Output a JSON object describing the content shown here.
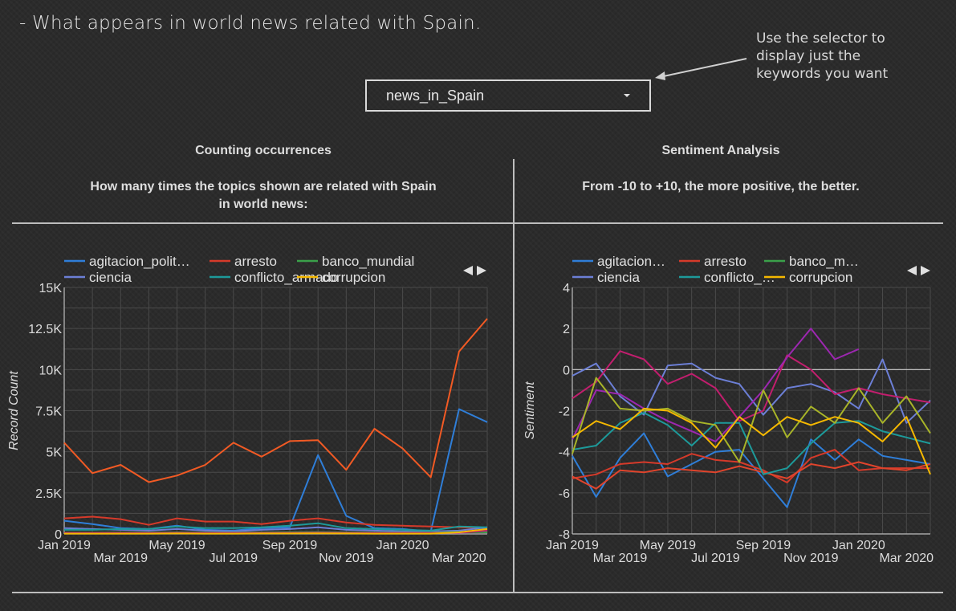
{
  "header": {
    "headline": "- What appears in world news related with Spain.",
    "note": "Use the selector to display just the keywords you want"
  },
  "selector": {
    "value": "news_in_Spain"
  },
  "left_section": {
    "title": "Counting occurrences",
    "subtitle_line1": "How many times the topics shown are related with Spain",
    "subtitle_line2": "in world news:"
  },
  "right_section": {
    "title": "Sentiment Analysis",
    "subtitle": "From -10 to +10, the more positive, the better."
  },
  "colors": {
    "agitacion": "#2f7ed8",
    "arresto": "#d63a2a",
    "banco": "#3aa04a",
    "ciencia": "#6c7fd6",
    "conflicto": "#1d9a9a",
    "corrupcion": "#f5b800",
    "orange": "#f25a24",
    "magenta": "#c21e6e",
    "purple": "#9c27b0",
    "olive": "#a8b428"
  },
  "chart_data": [
    {
      "type": "line",
      "ylabel": "Record Count",
      "ylim": [
        0,
        15000
      ],
      "y_ticks": [
        {
          "v": 0,
          "label": "0"
        },
        {
          "v": 2500,
          "label": "2.5K"
        },
        {
          "v": 5000,
          "label": "5K"
        },
        {
          "v": 7500,
          "label": "7.5K"
        },
        {
          "v": 10000,
          "label": "10K"
        },
        {
          "v": 12500,
          "label": "12.5K"
        },
        {
          "v": 15000,
          "label": "15K"
        }
      ],
      "x_ticks": [
        {
          "i": 0,
          "label": "Jan 2019"
        },
        {
          "i": 2,
          "label": "Mar 2019"
        },
        {
          "i": 4,
          "label": "May 2019"
        },
        {
          "i": 6,
          "label": "Jul 2019"
        },
        {
          "i": 8,
          "label": "Sep 2019"
        },
        {
          "i": 10,
          "label": "Nov 2019"
        },
        {
          "i": 12,
          "label": "Jan 2020"
        },
        {
          "i": 14,
          "label": "Mar 2020"
        }
      ],
      "legend": [
        {
          "label": "agitacion_polit…",
          "color": "#2f7ed8"
        },
        {
          "label": "arresto",
          "color": "#d63a2a"
        },
        {
          "label": "banco_mundial",
          "color": "#3aa04a"
        },
        {
          "label": "ciencia",
          "color": "#6c7fd6"
        },
        {
          "label": "conflicto_armado",
          "color": "#1d9a9a"
        },
        {
          "label": "corrupcion",
          "color": "#f5b800"
        }
      ],
      "series": [
        {
          "color": "#f25a24",
          "values": [
            5550,
            3700,
            4200,
            3150,
            3550,
            4200,
            5550,
            4700,
            5650,
            5700,
            3900,
            6400,
            5200,
            3450,
            11100,
            13100
          ]
        },
        {
          "color": "#2f7ed8",
          "values": [
            800,
            600,
            350,
            300,
            500,
            250,
            200,
            350,
            400,
            4800,
            1100,
            350,
            300,
            150,
            7600,
            6800
          ]
        },
        {
          "color": "#d63a2a",
          "values": [
            950,
            1050,
            900,
            550,
            950,
            750,
            750,
            600,
            800,
            950,
            700,
            550,
            500,
            450,
            400,
            350
          ]
        },
        {
          "color": "#6c7fd6",
          "values": [
            350,
            300,
            250,
            200,
            300,
            200,
            150,
            250,
            300,
            400,
            250,
            200,
            150,
            150,
            200,
            400
          ]
        },
        {
          "color": "#1d9a9a",
          "values": [
            250,
            250,
            300,
            300,
            450,
            350,
            350,
            400,
            500,
            650,
            350,
            300,
            250,
            200,
            450,
            400
          ]
        },
        {
          "color": "#3aa04a",
          "values": [
            80,
            80,
            90,
            90,
            100,
            90,
            90,
            100,
            110,
            120,
            100,
            90,
            90,
            90,
            120,
            100
          ]
        },
        {
          "color": "#c21e6e",
          "values": [
            60,
            60,
            60,
            60,
            70,
            60,
            60,
            70,
            70,
            80,
            70,
            60,
            60,
            60,
            70,
            200
          ]
        },
        {
          "color": "#f5b800",
          "values": [
            20,
            20,
            20,
            20,
            30,
            20,
            20,
            30,
            30,
            40,
            30,
            20,
            20,
            20,
            100,
            300
          ]
        }
      ]
    },
    {
      "type": "line",
      "ylabel": "Sentiment",
      "ylim": [
        -8,
        4
      ],
      "y_ticks": [
        {
          "v": -8,
          "label": "-8"
        },
        {
          "v": -6,
          "label": "-6"
        },
        {
          "v": -4,
          "label": "-4"
        },
        {
          "v": -2,
          "label": "-2"
        },
        {
          "v": 0,
          "label": "0"
        },
        {
          "v": 2,
          "label": "2"
        },
        {
          "v": 4,
          "label": "4"
        }
      ],
      "x_ticks": [
        {
          "i": 0,
          "label": "Jan 2019"
        },
        {
          "i": 2,
          "label": "Mar 2019"
        },
        {
          "i": 4,
          "label": "May 2019"
        },
        {
          "i": 6,
          "label": "Jul 2019"
        },
        {
          "i": 8,
          "label": "Sep 2019"
        },
        {
          "i": 10,
          "label": "Nov 2019"
        },
        {
          "i": 12,
          "label": "Jan 2020"
        },
        {
          "i": 14,
          "label": "Mar 2020"
        }
      ],
      "legend": [
        {
          "label": "agitacion…",
          "color": "#2f7ed8"
        },
        {
          "label": "arresto",
          "color": "#d63a2a"
        },
        {
          "label": "banco_m…",
          "color": "#3aa04a"
        },
        {
          "label": "ciencia",
          "color": "#6c7fd6"
        },
        {
          "label": "conflicto_…",
          "color": "#1d9a9a"
        },
        {
          "label": "corrupcion",
          "color": "#f5b800"
        }
      ],
      "series": [
        {
          "color": "#2f7ed8",
          "values": [
            -4.2,
            -6.2,
            -4.3,
            -3.1,
            -5.2,
            -4.6,
            -4.0,
            -3.9,
            -5.3,
            -6.7,
            -3.4,
            -4.4,
            -3.4,
            -4.2,
            -4.4,
            -4.6
          ]
        },
        {
          "color": "#d63a2a",
          "values": [
            -5.3,
            -5.1,
            -4.6,
            -4.5,
            -4.6,
            -4.1,
            -4.4,
            -4.5,
            -4.9,
            -5.5,
            -4.3,
            -3.9,
            -4.9,
            -4.8,
            -4.8,
            -4.8
          ]
        },
        {
          "color": "#e0442c",
          "values": [
            -5.2,
            -5.8,
            -4.9,
            -5.0,
            -4.8,
            -4.9,
            -5.0,
            -4.7,
            -5.0,
            -5.3,
            -4.6,
            -4.8,
            -4.5,
            -4.8,
            -4.9,
            -4.6
          ]
        },
        {
          "color": "#6c7fd6",
          "values": [
            -0.3,
            0.3,
            -1.3,
            -2.2,
            0.2,
            0.3,
            -0.4,
            -0.7,
            -2.2,
            -0.9,
            -0.7,
            -1.1,
            -1.9,
            0.5,
            -2.6,
            -1.5
          ]
        },
        {
          "color": "#c21e6e",
          "values": [
            -1.4,
            -0.6,
            0.9,
            0.5,
            -0.7,
            -0.2,
            -0.9,
            -2.5,
            -2.0,
            0.7,
            0.0,
            -1.2,
            -0.9,
            -1.2,
            -1.4,
            -1.6
          ]
        },
        {
          "color": "#9c27b0",
          "values": [
            -3.4,
            -1.0,
            -1.2,
            -1.9,
            -2.5,
            -3.0,
            -3.5,
            -2.3,
            -1.0,
            0.6,
            2.0,
            0.5,
            1.0,
            null,
            null,
            null
          ]
        },
        {
          "color": "#1d9a9a",
          "values": [
            -3.9,
            -3.7,
            -2.6,
            -2.1,
            -2.7,
            -3.7,
            -2.6,
            -2.6,
            -5.1,
            -4.8,
            -3.6,
            -2.6,
            -2.5,
            -3.0,
            -3.3,
            -3.6
          ]
        },
        {
          "color": "#a8b428",
          "values": [
            -4.1,
            -0.4,
            -1.9,
            -2.0,
            -1.9,
            -2.5,
            -2.7,
            -4.5,
            -1.0,
            -3.3,
            -1.8,
            -2.6,
            -0.9,
            -2.6,
            -1.3,
            -3.1
          ]
        },
        {
          "color": "#f5b800",
          "values": [
            -3.3,
            -2.5,
            -2.9,
            -1.9,
            -2.0,
            -2.6,
            -3.8,
            -2.3,
            -3.2,
            -2.3,
            -2.7,
            -2.3,
            -2.6,
            -3.5,
            -2.3,
            -5.1
          ]
        }
      ]
    }
  ]
}
